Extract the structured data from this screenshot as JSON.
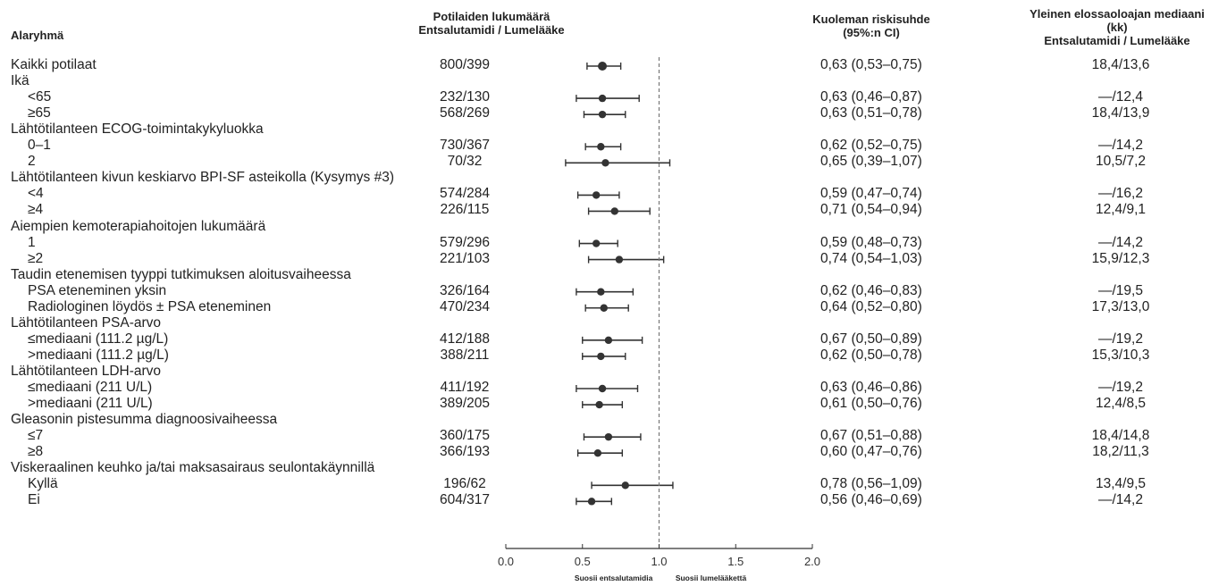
{
  "headers": {
    "subgroup": "Alaryhmä",
    "patients_line1": "Potilaiden lukumäärä",
    "patients_line2": "Entsalutamidi / Lumelääke",
    "hr_line1": "Kuoleman riskisuhde",
    "hr_line2": "(95%:n CI)",
    "os_line1": "Yleinen elossaoloajan mediaani",
    "os_line2": "(kk)",
    "os_line3": "Entsalutamidi / Lumelääke"
  },
  "footer": {
    "favors_left": "Suosii entsalutamidia",
    "favors_right": "Suosii lumelääkettä"
  },
  "chart_data": {
    "type": "forest",
    "xlim": [
      0.0,
      2.0
    ],
    "x_ticks": [
      "0.0",
      "0.5",
      "1.0",
      "1.5",
      "2.0"
    ],
    "reference_line": 1.0,
    "rows": [
      {
        "label": "Kaikki potilaat",
        "indent": false,
        "n": "800/399",
        "hr": 0.63,
        "lo": 0.53,
        "hi": 0.75,
        "hr_text": "0,63 (0,53–0,75)",
        "os": "18,4/13,6"
      },
      {
        "label": "Ikä",
        "header": true
      },
      {
        "label": "<65",
        "indent": true,
        "n": "232/130",
        "hr": 0.63,
        "lo": 0.46,
        "hi": 0.87,
        "hr_text": "0,63 (0,46–0,87)",
        "os": "—/12,4"
      },
      {
        "label": "≥65",
        "indent": true,
        "n": "568/269",
        "hr": 0.63,
        "lo": 0.51,
        "hi": 0.78,
        "hr_text": "0,63 (0,51–0,78)",
        "os": "18,4/13,9"
      },
      {
        "label": "Lähtötilanteen ECOG-toimintakykyluokka",
        "header": true
      },
      {
        "label": "0–1",
        "indent": true,
        "n": "730/367",
        "hr": 0.62,
        "lo": 0.52,
        "hi": 0.75,
        "hr_text": "0,62 (0,52–0,75)",
        "os": "—/14,2"
      },
      {
        "label": "2",
        "indent": true,
        "n": "70/32",
        "hr": 0.65,
        "lo": 0.39,
        "hi": 1.07,
        "hr_text": "0,65 (0,39–1,07)",
        "os": "10,5/7,2"
      },
      {
        "label": "Lähtötilanteen kivun keskiarvo BPI-SF asteikolla (Kysymys #3)",
        "header": true
      },
      {
        "label": "<4",
        "indent": true,
        "n": "574/284",
        "hr": 0.59,
        "lo": 0.47,
        "hi": 0.74,
        "hr_text": "0,59 (0,47–0,74)",
        "os": "—/16,2"
      },
      {
        "label": "≥4",
        "indent": true,
        "n": "226/115",
        "hr": 0.71,
        "lo": 0.54,
        "hi": 0.94,
        "hr_text": "0,71 (0,54–0,94)",
        "os": "12,4/9,1"
      },
      {
        "label": "Aiempien kemoterapiahoitojen lukumäärä",
        "header": true
      },
      {
        "label": "1",
        "indent": true,
        "n": "579/296",
        "hr": 0.59,
        "lo": 0.48,
        "hi": 0.73,
        "hr_text": "0,59 (0,48–0,73)",
        "os": "—/14,2"
      },
      {
        "label": "≥2",
        "indent": true,
        "n": "221/103",
        "hr": 0.74,
        "lo": 0.54,
        "hi": 1.03,
        "hr_text": "0,74 (0,54–1,03)",
        "os": "15,9/12,3"
      },
      {
        "label": "Taudin etenemisen tyyppi tutkimuksen aloitusvaiheessa",
        "header": true
      },
      {
        "label": "PSA eteneminen yksin",
        "indent": true,
        "n": "326/164",
        "hr": 0.62,
        "lo": 0.46,
        "hi": 0.83,
        "hr_text": "0,62 (0,46–0,83)",
        "os": "—/19,5"
      },
      {
        "label": "Radiologinen löydös ± PSA eteneminen",
        "indent": true,
        "n": "470/234",
        "hr": 0.64,
        "lo": 0.52,
        "hi": 0.8,
        "hr_text": "0,64 (0,52–0,80)",
        "os": "17,3/13,0"
      },
      {
        "label": "Lähtötilanteen PSA-arvo",
        "header": true
      },
      {
        "label": "≤mediaani (111.2 µg/L)",
        "indent": true,
        "n": "412/188",
        "hr": 0.67,
        "lo": 0.5,
        "hi": 0.89,
        "hr_text": "0,67 (0,50–0,89)",
        "os": "—/19,2"
      },
      {
        "label": ">mediaani (111.2 µg/L)",
        "indent": true,
        "n": "388/211",
        "hr": 0.62,
        "lo": 0.5,
        "hi": 0.78,
        "hr_text": "0,62 (0,50–0,78)",
        "os": "15,3/10,3"
      },
      {
        "label": "Lähtötilanteen LDH-arvo",
        "header": true
      },
      {
        "label": "≤mediaani (211 U/L)",
        "indent": true,
        "n": "411/192",
        "hr": 0.63,
        "lo": 0.46,
        "hi": 0.86,
        "hr_text": "0,63 (0,46–0,86)",
        "os": "—/19,2"
      },
      {
        "label": ">mediaani (211 U/L)",
        "indent": true,
        "n": "389/205",
        "hr": 0.61,
        "lo": 0.5,
        "hi": 0.76,
        "hr_text": "0,61 (0,50–0,76)",
        "os": "12,4/8,5"
      },
      {
        "label": "Gleasonin pistesumma diagnoosivaiheessa",
        "header": true
      },
      {
        "label": "≤7",
        "indent": true,
        "n": "360/175",
        "hr": 0.67,
        "lo": 0.51,
        "hi": 0.88,
        "hr_text": "0,67 (0,51–0,88)",
        "os": "18,4/14,8"
      },
      {
        "label": "≥8",
        "indent": true,
        "n": "366/193",
        "hr": 0.6,
        "lo": 0.47,
        "hi": 0.76,
        "hr_text": "0,60 (0,47–0,76)",
        "os": "18,2/11,3"
      },
      {
        "label": "Viskeraalinen keuhko ja/tai maksasairaus seulontakäynnillä",
        "header": true
      },
      {
        "label": "Kyllä",
        "indent": true,
        "n": "196/62",
        "hr": 0.78,
        "lo": 0.56,
        "hi": 1.09,
        "hr_text": "0,78 (0,56–1,09)",
        "os": "13,4/9,5"
      },
      {
        "label": "Ei",
        "indent": true,
        "n": "604/317",
        "hr": 0.56,
        "lo": 0.46,
        "hi": 0.69,
        "hr_text": "0,56 (0,46–0,69)",
        "os": "—/14,2"
      }
    ]
  }
}
